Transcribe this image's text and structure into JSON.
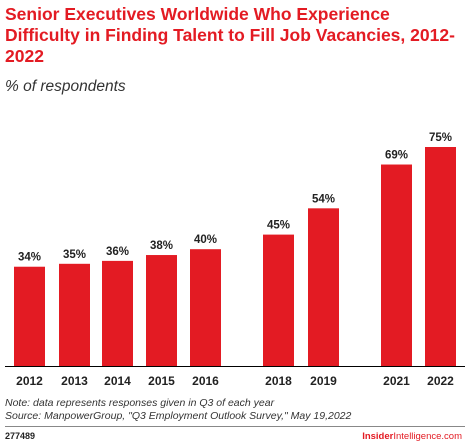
{
  "title": "Senior Executives Worldwide Who Experience Difficulty in Finding Talent to Fill Job Vacancies, 2012-2022",
  "subtitle": "% of respondents",
  "note_line1": "Note: data represents responses given in Q3 of each year",
  "note_line2": "Source: ManpowerGroup, \"Q3 Employment Outlook Survey,\" May 19,2022",
  "footer_id": "277489",
  "brand_part1": "Insider",
  "brand_part2": "Intelligence",
  "brand_part3": ".com",
  "colors": {
    "bar": "#e31b23",
    "text": "#222222"
  },
  "chart_data": {
    "type": "bar",
    "categories": [
      "2012",
      "2013",
      "2014",
      "2015",
      "2016",
      "2018",
      "2019",
      "2021",
      "2022"
    ],
    "values": [
      34,
      35,
      36,
      38,
      40,
      45,
      54,
      69,
      75
    ],
    "labels": [
      "34%",
      "35%",
      "36%",
      "38%",
      "40%",
      "45%",
      "54%",
      "69%",
      "75%"
    ],
    "ylim": [
      0,
      80
    ],
    "grid": false,
    "legend": "none"
  }
}
